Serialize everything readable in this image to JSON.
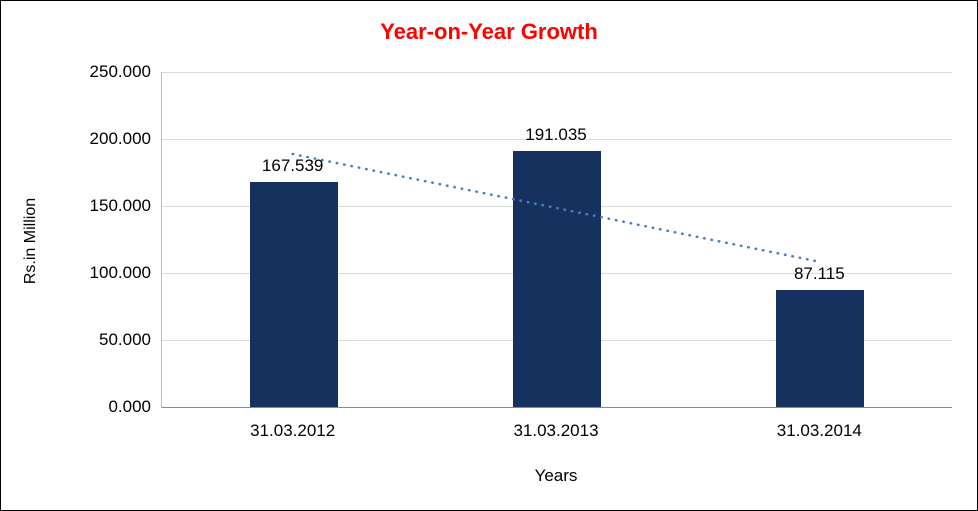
{
  "chart_data": {
    "type": "bar",
    "title": "Year-on-Year Growth",
    "title_color": "#ff0000",
    "xlabel": "Years",
    "ylabel": "Rs.in Million",
    "categories": [
      "31.03.2012",
      "31.03.2013",
      "31.03.2014"
    ],
    "values": [
      167.539,
      191.035,
      87.115
    ],
    "value_labels": [
      "167.539",
      "191.035",
      "87.115"
    ],
    "y_ticks": [
      0,
      50,
      100,
      150,
      200,
      250
    ],
    "y_tick_labels": [
      "0.000",
      "50.000",
      "100.000",
      "150.000",
      "200.000",
      "250.000"
    ],
    "ylim": [
      0,
      250
    ],
    "grid": "horizontal",
    "legend_position": "none",
    "bar_color": "#17315f",
    "trendline": {
      "type": "linear",
      "style": "dotted",
      "color": "#4a7ebb"
    }
  }
}
